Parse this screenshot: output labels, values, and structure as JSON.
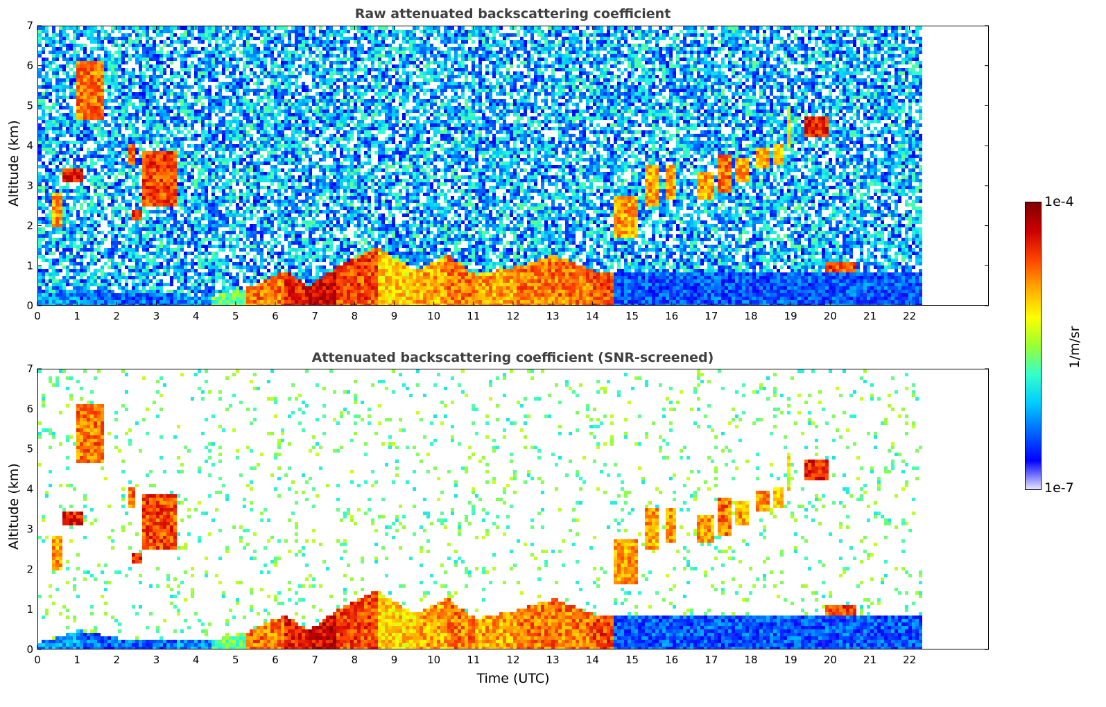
{
  "chart_data": [
    {
      "type": "heatmap",
      "title": "Raw attenuated backscattering coefficient",
      "xlabel": "",
      "ylabel": "Altitude (km)",
      "xlim": [
        0,
        24
      ],
      "ylim": [
        0,
        7
      ],
      "x_ticks": [
        0,
        1,
        2,
        3,
        4,
        5,
        6,
        7,
        8,
        9,
        10,
        11,
        12,
        13,
        14,
        15,
        16,
        17,
        18,
        19,
        20,
        21,
        22
      ],
      "y_ticks": [
        0,
        1,
        2,
        3,
        4,
        5,
        6,
        7
      ],
      "data_end_x": 22.3,
      "screened": false,
      "features": [
        {
          "x0": 0.9,
          "x1": 1.6,
          "y0": 4.7,
          "y1": 6.2,
          "level": 0.85
        },
        {
          "x0": 0.55,
          "x1": 1.1,
          "y0": 3.1,
          "y1": 3.45,
          "level": 0.95
        },
        {
          "x0": 0.3,
          "x1": 0.6,
          "y0": 2.0,
          "y1": 2.9,
          "level": 0.8
        },
        {
          "x0": 2.6,
          "x1": 3.5,
          "y0": 2.5,
          "y1": 3.9,
          "level": 0.9
        },
        {
          "x0": 2.35,
          "x1": 2.6,
          "y0": 2.15,
          "y1": 2.4,
          "level": 0.95
        },
        {
          "x0": 2.2,
          "x1": 2.4,
          "y0": 3.6,
          "y1": 4.05,
          "level": 0.85
        },
        {
          "x0": 14.5,
          "x1": 15.1,
          "y0": 1.7,
          "y1": 2.8,
          "level": 0.8
        },
        {
          "x0": 15.3,
          "x1": 15.6,
          "y0": 2.5,
          "y1": 3.6,
          "level": 0.8
        },
        {
          "x0": 15.8,
          "x1": 16.1,
          "y0": 2.7,
          "y1": 3.6,
          "level": 0.8
        },
        {
          "x0": 16.6,
          "x1": 17.0,
          "y0": 2.7,
          "y1": 3.4,
          "level": 0.8
        },
        {
          "x0": 17.1,
          "x1": 17.5,
          "y0": 2.9,
          "y1": 3.8,
          "level": 0.85
        },
        {
          "x0": 17.6,
          "x1": 17.9,
          "y0": 3.1,
          "y1": 3.7,
          "level": 0.8
        },
        {
          "x0": 18.1,
          "x1": 18.4,
          "y0": 3.5,
          "y1": 4.0,
          "level": 0.8
        },
        {
          "x0": 18.5,
          "x1": 18.8,
          "y0": 3.6,
          "y1": 4.1,
          "level": 0.75
        },
        {
          "x0": 18.85,
          "x1": 19.0,
          "y0": 4.0,
          "y1": 5.0,
          "level": 0.7
        },
        {
          "x0": 19.3,
          "x1": 19.9,
          "y0": 4.3,
          "y1": 4.8,
          "level": 0.95
        },
        {
          "x0": 19.8,
          "x1": 20.6,
          "y0": 0.85,
          "y1": 1.1,
          "level": 0.9
        }
      ],
      "boundary_layer": [
        {
          "x": 0,
          "top": 0.2,
          "level": 0.25
        },
        {
          "x": 1,
          "top": 0.5,
          "level": 0.2
        },
        {
          "x": 2,
          "top": 0.3,
          "level": 0.2
        },
        {
          "x": 3.5,
          "top": 0.3,
          "level": 0.25
        },
        {
          "x": 4.3,
          "top": 0.25,
          "level": 0.45
        },
        {
          "x": 5.2,
          "top": 0.45,
          "level": 0.75
        },
        {
          "x": 6.2,
          "top": 0.9,
          "level": 0.85
        },
        {
          "x": 6.8,
          "top": 0.5,
          "level": 0.9
        },
        {
          "x": 7.5,
          "top": 1.0,
          "level": 0.8
        },
        {
          "x": 8.5,
          "top": 1.5,
          "level": 0.65
        },
        {
          "x": 9.5,
          "top": 0.9,
          "level": 0.7
        },
        {
          "x": 10.3,
          "top": 1.3,
          "level": 0.75
        },
        {
          "x": 11.0,
          "top": 0.8,
          "level": 0.7
        },
        {
          "x": 12.0,
          "top": 1.0,
          "level": 0.75
        },
        {
          "x": 13.0,
          "top": 1.3,
          "level": 0.75
        },
        {
          "x": 14.0,
          "top": 0.9,
          "level": 0.8
        },
        {
          "x": 14.5,
          "top": 0.9,
          "level": 0.18
        },
        {
          "x": 22.3,
          "top": 0.9,
          "level": 0.18
        }
      ]
    },
    {
      "type": "heatmap",
      "title": "Attenuated backscattering coefficient (SNR-screened)",
      "xlabel": "Time (UTC)",
      "ylabel": "Altitude (km)",
      "xlim": [
        0,
        24
      ],
      "ylim": [
        0,
        7
      ],
      "x_ticks": [
        0,
        1,
        2,
        3,
        4,
        5,
        6,
        7,
        8,
        9,
        10,
        11,
        12,
        13,
        14,
        15,
        16,
        17,
        18,
        19,
        20,
        21,
        22
      ],
      "y_ticks": [
        0,
        1,
        2,
        3,
        4,
        5,
        6,
        7
      ],
      "data_end_x": 22.3,
      "screened": true
    }
  ],
  "colorbar": {
    "label": "1/m/sr",
    "min_label": "1e-7",
    "max_label": "1e-4",
    "colors": [
      "#e6e6ff",
      "#0000ff",
      "#0066ff",
      "#00ccff",
      "#33ffcc",
      "#99ff33",
      "#ffff00",
      "#ffaa00",
      "#ff4400",
      "#cc0000",
      "#800000"
    ]
  }
}
